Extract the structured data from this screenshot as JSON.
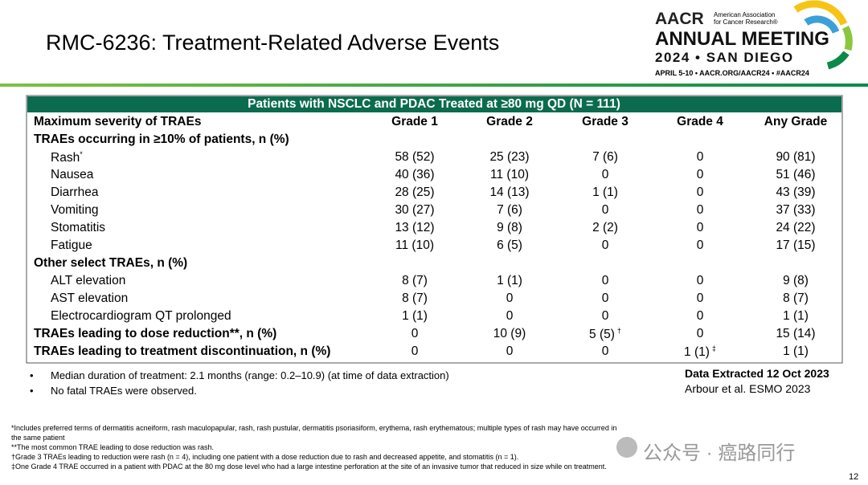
{
  "header": {
    "title": "RMC-6236: Treatment-Related Adverse Events",
    "logo": {
      "org": "AACR",
      "org_full": "American Association for Cancer Research®",
      "event": "ANNUAL MEETING",
      "edition": "2024 • SAN DIEGO",
      "details": "APRIL 5-10 • AACR.ORG/AACR24 • #AACR24"
    }
  },
  "table": {
    "banner": "Patients with NSCLC and PDAC Treated at ≥80 mg QD (N = 111)",
    "columns": [
      "Maximum severity of TRAEs",
      "Grade 1",
      "Grade 2",
      "Grade 3",
      "Grade 4",
      "Any Grade"
    ],
    "rows": [
      {
        "label": "TRAEs occurring in ≥10% of patients, n (%)",
        "kind": "section"
      },
      {
        "label": "Rash",
        "label_sup": "*",
        "kind": "item",
        "cells": [
          "58 (52)",
          "25 (23)",
          "7 (6)",
          "0",
          "90 (81)"
        ]
      },
      {
        "label": "Nausea",
        "kind": "item",
        "cells": [
          "40 (36)",
          "11 (10)",
          "0",
          "0",
          "51 (46)"
        ]
      },
      {
        "label": "Diarrhea",
        "kind": "item",
        "cells": [
          "28 (25)",
          "14 (13)",
          "1 (1)",
          "0",
          "43 (39)"
        ]
      },
      {
        "label": "Vomiting",
        "kind": "item",
        "cells": [
          "30 (27)",
          "7 (6)",
          "0",
          "0",
          "37 (33)"
        ]
      },
      {
        "label": "Stomatitis",
        "kind": "item",
        "cells": [
          "13 (12)",
          "9 (8)",
          "2 (2)",
          "0",
          "24 (22)"
        ]
      },
      {
        "label": "Fatigue",
        "kind": "item",
        "cells": [
          "11 (10)",
          "6 (5)",
          "0",
          "0",
          "17 (15)"
        ]
      },
      {
        "label": "Other select TRAEs, n (%)",
        "kind": "section"
      },
      {
        "label": "ALT elevation",
        "kind": "item",
        "cells": [
          "8 (7)",
          "1 (1)",
          "0",
          "0",
          "9 (8)"
        ]
      },
      {
        "label": "AST elevation",
        "kind": "item",
        "cells": [
          "8 (7)",
          "0",
          "0",
          "0",
          "8 (7)"
        ]
      },
      {
        "label": "Electrocardiogram QT prolonged",
        "kind": "item",
        "cells": [
          "1 (1)",
          "0",
          "0",
          "0",
          "1 (1)"
        ]
      },
      {
        "label": "TRAEs leading to dose reduction**, n (%)",
        "kind": "section",
        "cells": [
          "0",
          "10 (9)",
          "5 (5)",
          "0",
          "15 (14)"
        ],
        "cell_sups": {
          "2": "†"
        }
      },
      {
        "label": "TRAEs leading to treatment discontinuation, n (%)",
        "kind": "section",
        "cells": [
          "0",
          "0",
          "0",
          "1 (1)",
          "1 (1)"
        ],
        "cell_sups": {
          "3": "‡"
        }
      }
    ]
  },
  "bullets": [
    "Median duration of treatment: 2.1 months (range: 0.2–10.9) (at time of data extraction)",
    "No fatal TRAEs were observed."
  ],
  "data_extracted": "Data Extracted 12 Oct 2023",
  "citation": "Arbour et al. ESMO 2023",
  "footnotes": [
    "*Includes preferred terms of dermatitis acneiform, rash maculopapular, rash, rash pustular, dermatitis psoriasiform, erythema, rash erythematous; multiple types of rash may have occurred in the same patient",
    "**The most common TRAE leading to dose reduction was rash.",
    "†Grade 3 TRAEs leading to reduction were rash (n = 4), including one patient with a dose reduction due to rash and decreased appetite, and stomatitis (n = 1).",
    "‡One Grade 4 TRAE occurred in a patient with PDAC at the 80 mg dose level who had a large intestine perforation at the site of an invasive tumor that reduced in size while on treatment."
  ],
  "watermark": "公众号 · 癌路同行",
  "page_number": "12"
}
